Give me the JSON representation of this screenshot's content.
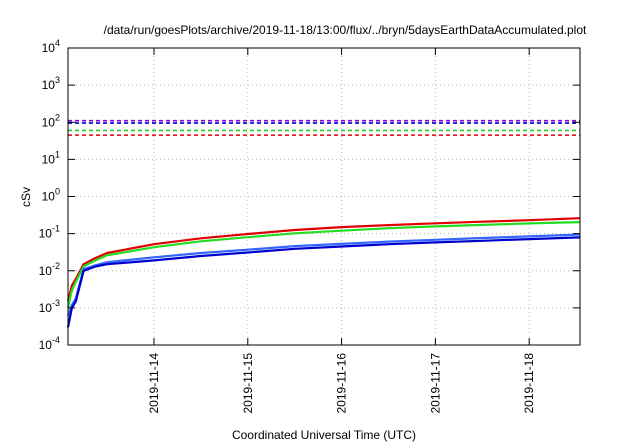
{
  "chart_data": {
    "type": "line",
    "title": "/data/run/goesPlots/archive/2019-11-18/13:00/flux/../bryn/5daysEarthDataAccumulated.plot",
    "xlabel": "Coordinated Universal Time (UTC)",
    "ylabel": "cSv",
    "yscale": "log",
    "ylim": [
      0.0001,
      10000
    ],
    "xlim": [
      "2019-11-13T02:00",
      "2019-11-18T13:00"
    ],
    "grid": true,
    "y_ticks": [
      {
        "base": "10",
        "exp": "-4",
        "value": 0.0001
      },
      {
        "base": "10",
        "exp": "-3",
        "value": 0.001
      },
      {
        "base": "10",
        "exp": "-2",
        "value": 0.01
      },
      {
        "base": "10",
        "exp": "-1",
        "value": 0.1
      },
      {
        "base": "10",
        "exp": "0",
        "value": 1
      },
      {
        "base": "10",
        "exp": "1",
        "value": 10
      },
      {
        "base": "10",
        "exp": "2",
        "value": 100
      },
      {
        "base": "10",
        "exp": "3",
        "value": 1000
      },
      {
        "base": "10",
        "exp": "4",
        "value": 10000
      }
    ],
    "x_ticks": [
      {
        "label": "2019-11-14",
        "value": "2019-11-14T00:00"
      },
      {
        "label": "2019-11-15",
        "value": "2019-11-15T00:00"
      },
      {
        "label": "2019-11-16",
        "value": "2019-11-16T00:00"
      },
      {
        "label": "2019-11-17",
        "value": "2019-11-17T00:00"
      },
      {
        "label": "2019-11-18",
        "value": "2019-11-18T00:00"
      }
    ],
    "thresholds": [
      {
        "value": 110,
        "color": "#9400d3",
        "dash": true
      },
      {
        "value": 95,
        "color": "#0000cc",
        "dash": true
      },
      {
        "value": 60,
        "color": "#22cc22",
        "dash": true
      },
      {
        "value": 45,
        "color": "#e00000",
        "dash": true
      }
    ],
    "series": [
      {
        "color": "#e00000",
        "x": [
          "2019-11-13T02:00",
          "2019-11-13T03:00",
          "2019-11-13T04:00",
          "2019-11-13T06:00",
          "2019-11-13T09:00",
          "2019-11-13T12:00",
          "2019-11-14T00:00",
          "2019-11-14T12:00",
          "2019-11-15T00:00",
          "2019-11-15T12:00",
          "2019-11-16T00:00",
          "2019-11-16T12:00",
          "2019-11-17T00:00",
          "2019-11-17T12:00",
          "2019-11-18T00:00",
          "2019-11-18T13:00"
        ],
        "y": [
          0.0015,
          0.004,
          0.006,
          0.015,
          0.022,
          0.03,
          0.052,
          0.075,
          0.098,
          0.125,
          0.15,
          0.17,
          0.19,
          0.21,
          0.23,
          0.26
        ]
      },
      {
        "color": "#22dd22",
        "x": [
          "2019-11-13T02:00",
          "2019-11-13T03:00",
          "2019-11-13T04:00",
          "2019-11-13T06:00",
          "2019-11-13T09:00",
          "2019-11-13T12:00",
          "2019-11-14T00:00",
          "2019-11-14T12:00",
          "2019-11-15T00:00",
          "2019-11-15T12:00",
          "2019-11-16T00:00",
          "2019-11-16T12:00",
          "2019-11-17T00:00",
          "2019-11-17T12:00",
          "2019-11-18T00:00",
          "2019-11-18T13:00"
        ],
        "y": [
          0.001,
          0.003,
          0.005,
          0.013,
          0.019,
          0.026,
          0.043,
          0.062,
          0.08,
          0.102,
          0.12,
          0.14,
          0.157,
          0.172,
          0.188,
          0.205
        ]
      },
      {
        "color": "#3366ff",
        "x": [
          "2019-11-13T02:00",
          "2019-11-13T03:00",
          "2019-11-13T04:00",
          "2019-11-13T06:00",
          "2019-11-13T09:00",
          "2019-11-13T12:00",
          "2019-11-14T00:00",
          "2019-11-14T12:00",
          "2019-11-15T00:00",
          "2019-11-15T12:00",
          "2019-11-16T00:00",
          "2019-11-16T12:00",
          "2019-11-17T00:00",
          "2019-11-17T12:00",
          "2019-11-18T00:00",
          "2019-11-18T13:00"
        ],
        "y": [
          0.0006,
          0.0012,
          0.0018,
          0.011,
          0.014,
          0.017,
          0.023,
          0.03,
          0.037,
          0.046,
          0.053,
          0.061,
          0.068,
          0.076,
          0.084,
          0.095
        ]
      },
      {
        "color": "#0000cc",
        "x": [
          "2019-11-13T02:00",
          "2019-11-13T03:00",
          "2019-11-13T04:00",
          "2019-11-13T06:00",
          "2019-11-13T09:00",
          "2019-11-13T12:00",
          "2019-11-14T00:00",
          "2019-11-14T12:00",
          "2019-11-15T00:00",
          "2019-11-15T12:00",
          "2019-11-16T00:00",
          "2019-11-16T12:00",
          "2019-11-17T00:00",
          "2019-11-17T12:00",
          "2019-11-18T00:00",
          "2019-11-18T13:00"
        ],
        "y": [
          0.0003,
          0.001,
          0.0015,
          0.01,
          0.013,
          0.015,
          0.019,
          0.025,
          0.031,
          0.039,
          0.045,
          0.052,
          0.058,
          0.064,
          0.071,
          0.079
        ]
      }
    ]
  }
}
